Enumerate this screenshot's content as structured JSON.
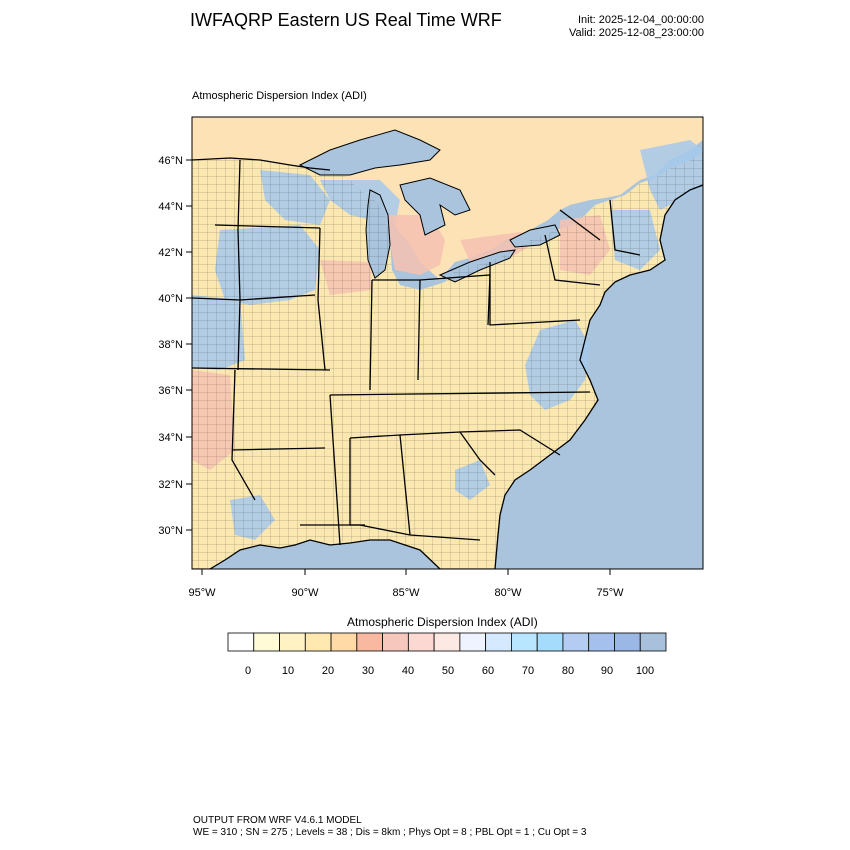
{
  "header": {
    "title": "IWFAQRP Eastern US Real Time WRF",
    "init": "Init: 2025-12-04_00:00:00",
    "valid": "Valid: 2025-12-08_23:00:00"
  },
  "map": {
    "subtitle": "Atmospheric Dispersion Index   (ADI)",
    "lat_labels": [
      "46°N",
      "44°N",
      "42°N",
      "40°N",
      "38°N",
      "36°N",
      "34°N",
      "32°N",
      "30°N"
    ],
    "lon_labels": [
      "95°W",
      "90°W",
      "85°W",
      "80°W",
      "75°W"
    ],
    "colors": {
      "water": "#a9c4dc",
      "land_low": "#fbe7b0",
      "land_mid": "#f9d3b6",
      "land_high": "#a8c7e8",
      "border": "#000000"
    }
  },
  "legend": {
    "title": "Atmospheric Dispersion Index  (ADI)",
    "tick_labels": [
      "0",
      "10",
      "20",
      "30",
      "40",
      "50",
      "60",
      "70",
      "80",
      "90",
      "100"
    ],
    "colors": [
      "#ffffff",
      "#fffbd6",
      "#fff3c4",
      "#ffe9b0",
      "#ffd9a6",
      "#f8b9a0",
      "#f6c7bc",
      "#fbd9d2",
      "#fde9e4",
      "#eef3ff",
      "#d6eaff",
      "#b8e5ff",
      "#a6dcfb",
      "#b5ccf2",
      "#a5c0ec",
      "#9bb7e6",
      "#a8c0dc"
    ]
  },
  "footer": {
    "line1": "OUTPUT FROM WRF V4.6.1 MODEL",
    "line2": "WE = 310 ; SN = 275 ; Levels = 38 ; Dis = 8km ; Phys Opt = 8 ; PBL Opt = 1 ; Cu Opt = 3"
  }
}
